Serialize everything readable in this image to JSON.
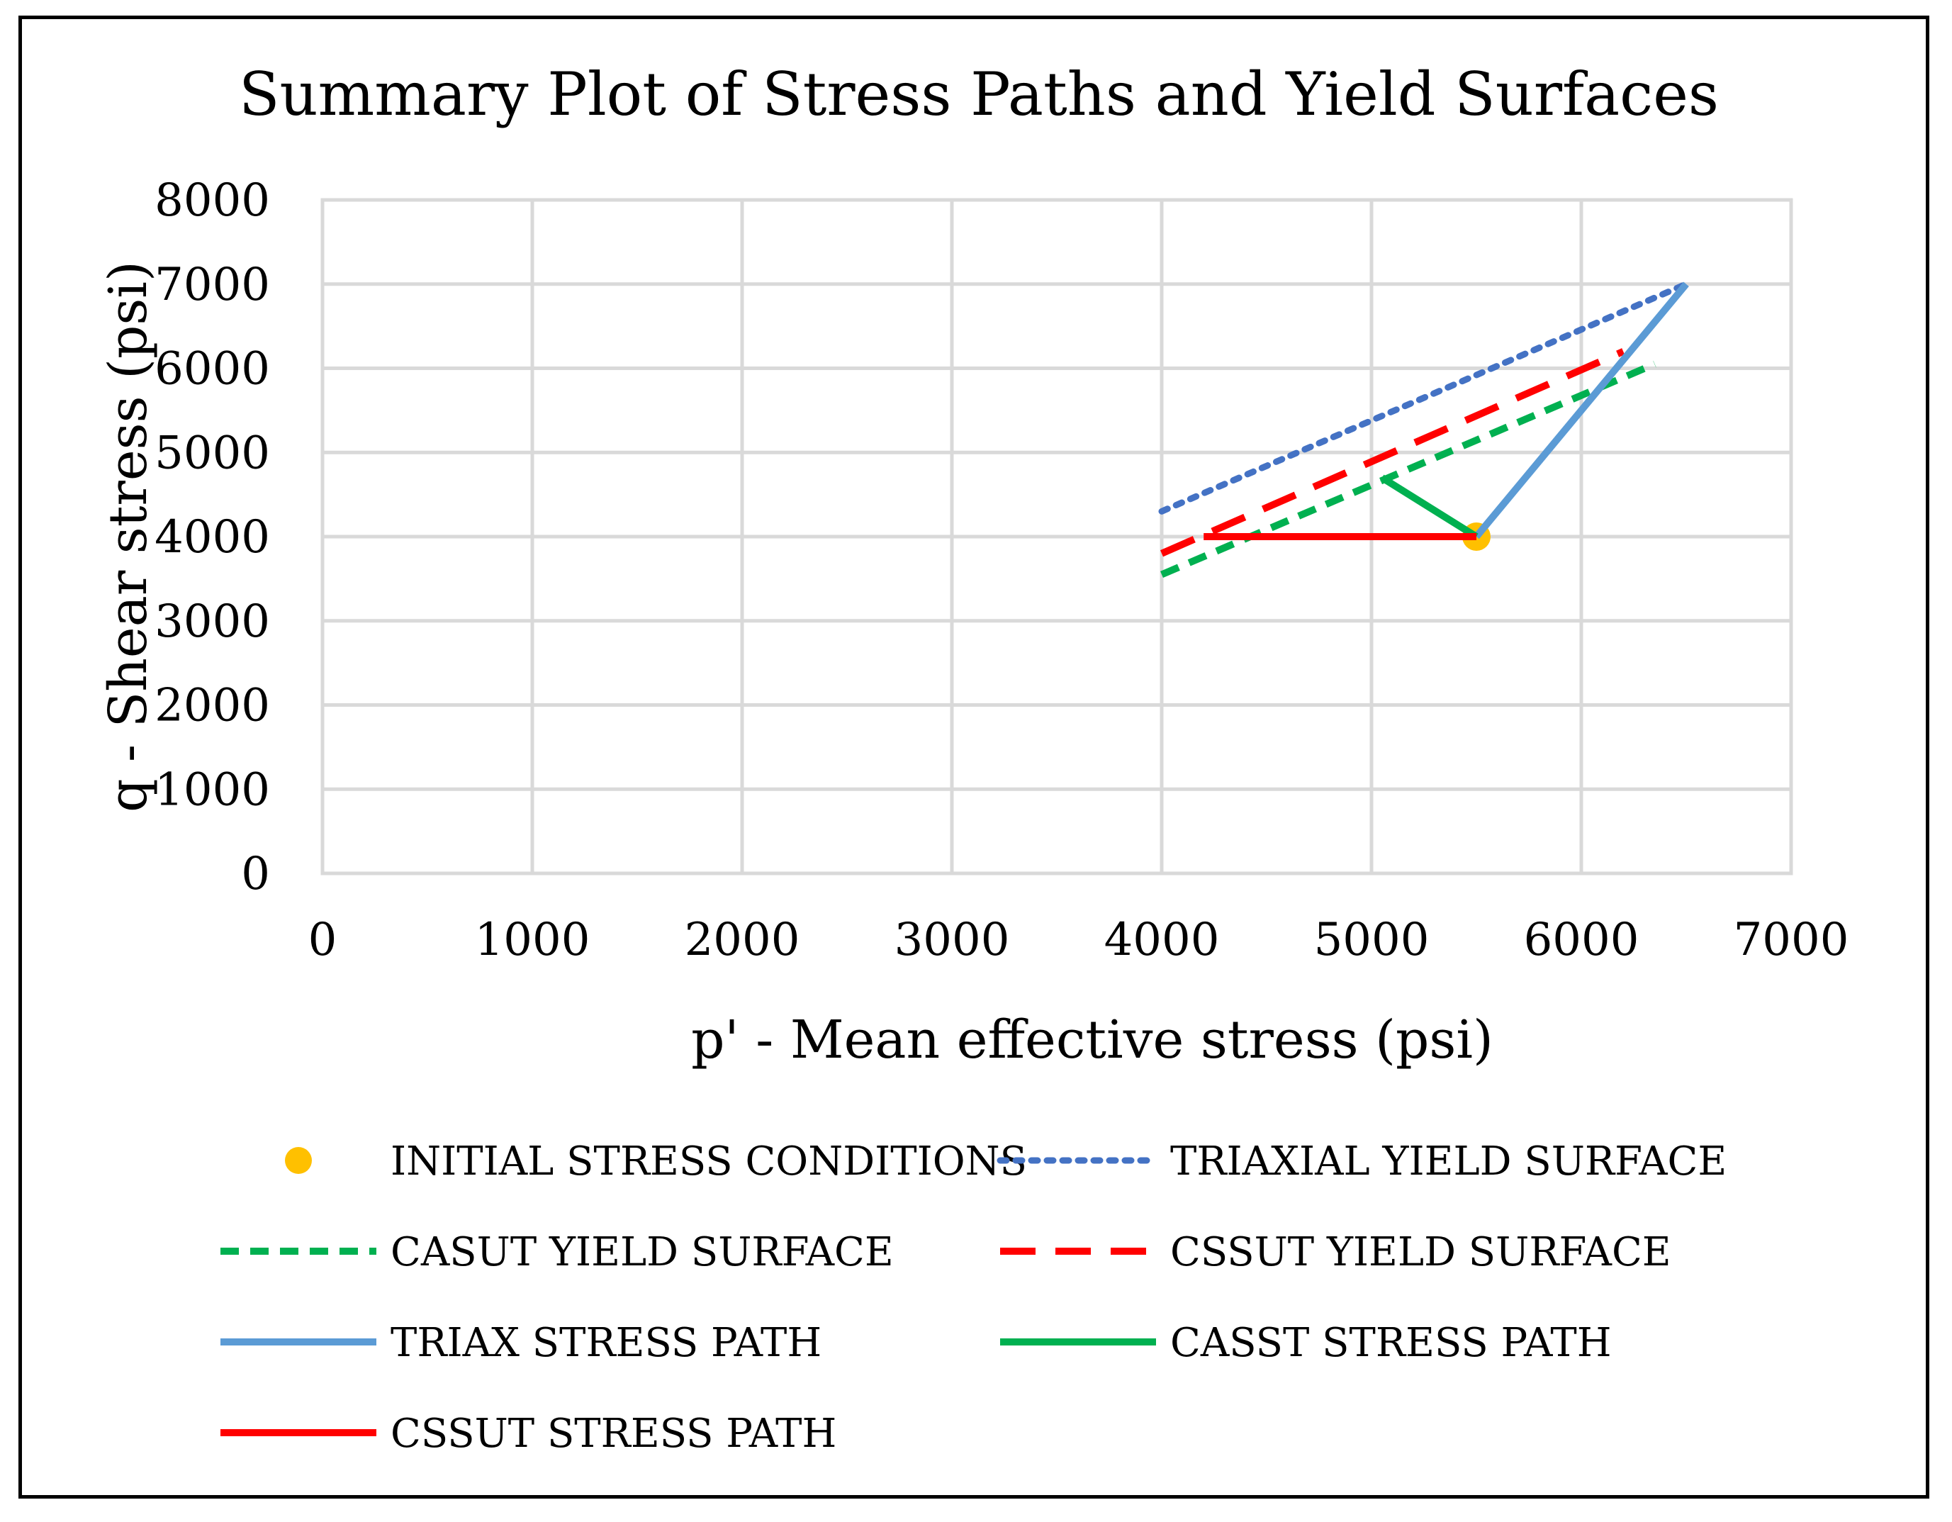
{
  "chart_data": {
    "type": "line",
    "title": "Summary Plot of Stress Paths and Yield Surfaces",
    "xlabel": "p' - Mean effective stress (psi)",
    "ylabel": "q - Shear stress (psi)",
    "xlim": [
      0,
      7000
    ],
    "ylim": [
      0,
      8000
    ],
    "xticks": [
      0,
      1000,
      2000,
      3000,
      4000,
      5000,
      6000,
      7000
    ],
    "yticks": [
      0,
      1000,
      2000,
      3000,
      4000,
      5000,
      6000,
      7000,
      8000
    ],
    "grid": true,
    "legend_position": "bottom",
    "series": [
      {
        "name": "INITIAL STRESS CONDITIONS",
        "kind": "marker",
        "color": "#FFC000",
        "x": [
          5500
        ],
        "y": [
          4000
        ]
      },
      {
        "name": "TRIAXIAL YIELD SURFACE",
        "kind": "line",
        "style": "dotted",
        "color": "#4472C4",
        "x": [
          4000,
          6500
        ],
        "y": [
          4300,
          7000
        ]
      },
      {
        "name": "CASUT YIELD SURFACE",
        "kind": "line",
        "style": "dashed",
        "color": "#00B050",
        "x": [
          4000,
          6350
        ],
        "y": [
          3550,
          6050
        ]
      },
      {
        "name": "CSSUT YIELD SURFACE",
        "kind": "line",
        "style": "longdash",
        "color": "#FF0000",
        "x": [
          4000,
          6200
        ],
        "y": [
          3800,
          6200
        ]
      },
      {
        "name": "TRIAX STRESS PATH",
        "kind": "line",
        "style": "solid",
        "color": "#5B9BD5",
        "x": [
          5500,
          6500
        ],
        "y": [
          4000,
          7000
        ]
      },
      {
        "name": "CASST STRESS PATH",
        "kind": "line",
        "style": "solid",
        "color": "#00B050",
        "x": [
          5500,
          5050
        ],
        "y": [
          4000,
          4700
        ]
      },
      {
        "name": "CSSUT STRESS PATH",
        "kind": "line",
        "style": "solid",
        "color": "#FF0000",
        "x": [
          5500,
          4200
        ],
        "y": [
          4000,
          4000
        ]
      }
    ]
  }
}
